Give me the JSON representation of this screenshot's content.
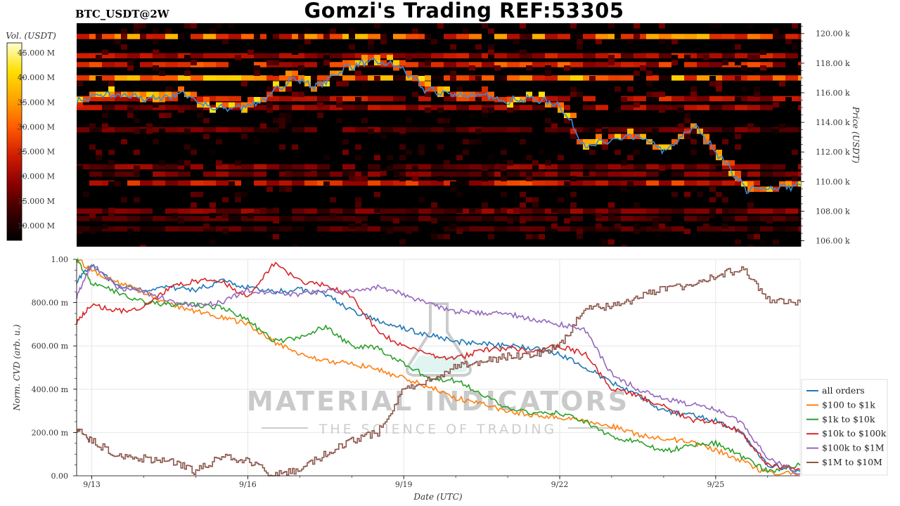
{
  "header": {
    "title": "Gomzi's Trading REF:53305",
    "pair": "BTC_USDT@2W"
  },
  "watermark": {
    "brand": "MATERIAL INDICATORS",
    "tagline": "THE SCIENCE OF TRADING"
  },
  "chart_data": [
    {
      "type": "heatmap",
      "title": "",
      "ylabel": "Price (USDT)",
      "ylim": [
        105600,
        120700
      ],
      "y_ticks": [
        "120.00 k",
        "118.00 k",
        "116.00 k",
        "114.00 k",
        "112.00 k",
        "110.00 k",
        "108.00 k",
        "106.00 k"
      ],
      "y_tick_values": [
        120000,
        118000,
        116000,
        114000,
        112000,
        110000,
        108000,
        106000
      ],
      "colorbar": {
        "label": "Vol. (USDT)",
        "ticks": [
          "45.000 M",
          "40.000 M",
          "35.000 M",
          "30.000 M",
          "25.000 M",
          "20.000 M",
          "15.000 M",
          "10.000 M"
        ],
        "tick_values": [
          45,
          40,
          35,
          30,
          25,
          20,
          15,
          10
        ],
        "range": [
          7,
          47
        ],
        "colors": [
          "#000000",
          "#3a0000",
          "#8a0000",
          "#d01c00",
          "#ff5a00",
          "#ffa400",
          "#ffe000",
          "#ffffd0"
        ]
      },
      "price_series": {
        "name": "price",
        "color": "#3b8bd8",
        "day_values": [
          115400,
          115900,
          115700,
          115600,
          116000,
          114900,
          115000,
          115500,
          117000,
          116400,
          117700,
          118100,
          117800,
          116200,
          115900,
          115800,
          115500,
          115600,
          115200,
          112300,
          112800,
          113000,
          112000,
          113800,
          111700,
          109400,
          109600,
          109700
        ]
      },
      "liquidity_bands": [
        {
          "price": 119800,
          "intensity": 32
        },
        {
          "price": 118500,
          "intensity": 22
        },
        {
          "price": 117900,
          "intensity": 26
        },
        {
          "price": 117000,
          "intensity": 34
        },
        {
          "price": 115600,
          "intensity": 24
        },
        {
          "price": 115000,
          "intensity": 20
        },
        {
          "price": 113500,
          "intensity": 16
        },
        {
          "price": 111000,
          "intensity": 18
        },
        {
          "price": 110500,
          "intensity": 17
        },
        {
          "price": 109900,
          "intensity": 25
        },
        {
          "price": 108000,
          "intensity": 17
        },
        {
          "price": 107500,
          "intensity": 14
        },
        {
          "price": 106800,
          "intensity": 14
        }
      ]
    },
    {
      "type": "line",
      "title": "",
      "xlabel": "Date (UTC)",
      "ylabel": "Norm. CVD (arb. u.)",
      "ylim": [
        0,
        1
      ],
      "y_ticks": [
        "1.00",
        "800.00 m",
        "600.00 m",
        "400.00 m",
        "200.00 m",
        "0.00"
      ],
      "y_tick_values": [
        1,
        0.8,
        0.6,
        0.4,
        0.2,
        0
      ],
      "x_ticks": [
        "9/13",
        "9/16",
        "9/19",
        "9/22",
        "9/25"
      ],
      "x_tick_values": [
        "2025-09-13",
        "2025-09-16",
        "2025-09-19",
        "2025-09-22",
        "2025-09-25"
      ],
      "x_range": [
        "2025-09-12 17:00",
        "2025-09-26 15:00"
      ],
      "x": [
        "2025-09-12 17:00",
        "2025-09-13 00:00",
        "2025-09-13 12:00",
        "2025-09-14 00:00",
        "2025-09-14 12:00",
        "2025-09-15 00:00",
        "2025-09-15 12:00",
        "2025-09-16 00:00",
        "2025-09-16 12:00",
        "2025-09-17 00:00",
        "2025-09-17 12:00",
        "2025-09-18 00:00",
        "2025-09-18 12:00",
        "2025-09-19 00:00",
        "2025-09-19 12:00",
        "2025-09-20 00:00",
        "2025-09-20 12:00",
        "2025-09-21 00:00",
        "2025-09-21 12:00",
        "2025-09-22 00:00",
        "2025-09-22 12:00",
        "2025-09-23 00:00",
        "2025-09-23 12:00",
        "2025-09-24 00:00",
        "2025-09-24 12:00",
        "2025-09-25 00:00",
        "2025-09-25 12:00",
        "2025-09-26 00:00",
        "2025-09-26 15:00"
      ],
      "legend_position": "right",
      "series": [
        {
          "name": "all orders",
          "color": "#1f77b4",
          "values": [
            0.9,
            0.97,
            0.88,
            0.86,
            0.87,
            0.86,
            0.9,
            0.87,
            0.85,
            0.86,
            0.84,
            0.76,
            0.72,
            0.68,
            0.65,
            0.62,
            0.61,
            0.6,
            0.59,
            0.56,
            0.5,
            0.43,
            0.37,
            0.3,
            0.28,
            0.26,
            0.2,
            0.05,
            0.02
          ]
        },
        {
          "name": "$100 to $1k",
          "color": "#ff7f0e",
          "values": [
            1.0,
            0.95,
            0.89,
            0.85,
            0.79,
            0.76,
            0.73,
            0.7,
            0.62,
            0.56,
            0.53,
            0.52,
            0.49,
            0.45,
            0.41,
            0.36,
            0.33,
            0.3,
            0.28,
            0.27,
            0.25,
            0.23,
            0.19,
            0.17,
            0.16,
            0.12,
            0.07,
            0.01,
            0.01
          ]
        },
        {
          "name": "$1k to $10k",
          "color": "#2ca02c",
          "values": [
            1.0,
            0.89,
            0.85,
            0.8,
            0.79,
            0.79,
            0.78,
            0.72,
            0.62,
            0.64,
            0.69,
            0.6,
            0.59,
            0.52,
            0.45,
            0.44,
            0.38,
            0.31,
            0.29,
            0.29,
            0.25,
            0.18,
            0.16,
            0.11,
            0.14,
            0.15,
            0.09,
            0.02,
            0.05
          ]
        },
        {
          "name": "$10k to $100k",
          "color": "#d62728",
          "values": [
            0.71,
            0.79,
            0.76,
            0.78,
            0.87,
            0.9,
            0.9,
            0.82,
            0.98,
            0.9,
            0.88,
            0.83,
            0.66,
            0.6,
            0.56,
            0.54,
            0.58,
            0.59,
            0.58,
            0.6,
            0.56,
            0.4,
            0.37,
            0.32,
            0.26,
            0.25,
            0.2,
            0.05,
            0.03
          ]
        },
        {
          "name": "$100k to $1M",
          "color": "#9467bd",
          "values": [
            0.83,
            0.98,
            0.87,
            0.85,
            0.81,
            0.79,
            0.8,
            0.86,
            0.84,
            0.84,
            0.85,
            0.86,
            0.87,
            0.84,
            0.79,
            0.76,
            0.75,
            0.75,
            0.72,
            0.7,
            0.67,
            0.47,
            0.4,
            0.36,
            0.33,
            0.31,
            0.25,
            0.08,
            0.01
          ]
        },
        {
          "name": "$1M to $10M",
          "color": "#8c564b",
          "values": [
            0.22,
            0.16,
            0.09,
            0.08,
            0.07,
            0.02,
            0.09,
            0.07,
            0.0,
            0.03,
            0.1,
            0.16,
            0.2,
            0.4,
            0.45,
            0.5,
            0.53,
            0.55,
            0.56,
            0.6,
            0.78,
            0.78,
            0.82,
            0.87,
            0.88,
            0.92,
            0.96,
            0.81,
            0.8
          ]
        }
      ]
    }
  ]
}
